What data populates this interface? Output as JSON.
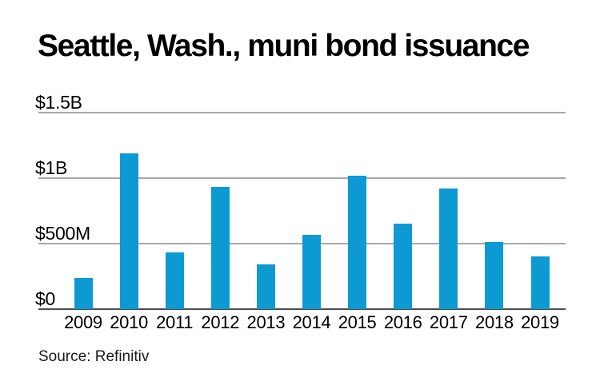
{
  "title": "Seattle, Wash., muni bond issuance",
  "source": "Source: Refinitiv",
  "colors": {
    "bar": "#0d9ad3",
    "gridline": "#a8a8a8",
    "baseline": "#4d4d4d",
    "background": "#ffffff",
    "text": "#000000"
  },
  "chart_data": {
    "type": "bar",
    "title": "Seattle, Wash., muni bond issuance",
    "categories": [
      "2009",
      "2010",
      "2011",
      "2012",
      "2013",
      "2014",
      "2015",
      "2016",
      "2017",
      "2018",
      "2019"
    ],
    "values": [
      235,
      1190,
      430,
      930,
      340,
      570,
      1020,
      655,
      920,
      515,
      400
    ],
    "unit": "USD millions",
    "xlabel": "",
    "ylabel": "",
    "ylim": [
      0,
      1500
    ],
    "yticks": [
      {
        "label": "$1.5B",
        "value": 1500
      },
      {
        "label": "$1B",
        "value": 1000
      },
      {
        "label": "$500M",
        "value": 500
      },
      {
        "label": "$0",
        "value": 0
      }
    ],
    "grid": "horizontal",
    "legend": "none",
    "source": "Source: Refinitiv"
  }
}
